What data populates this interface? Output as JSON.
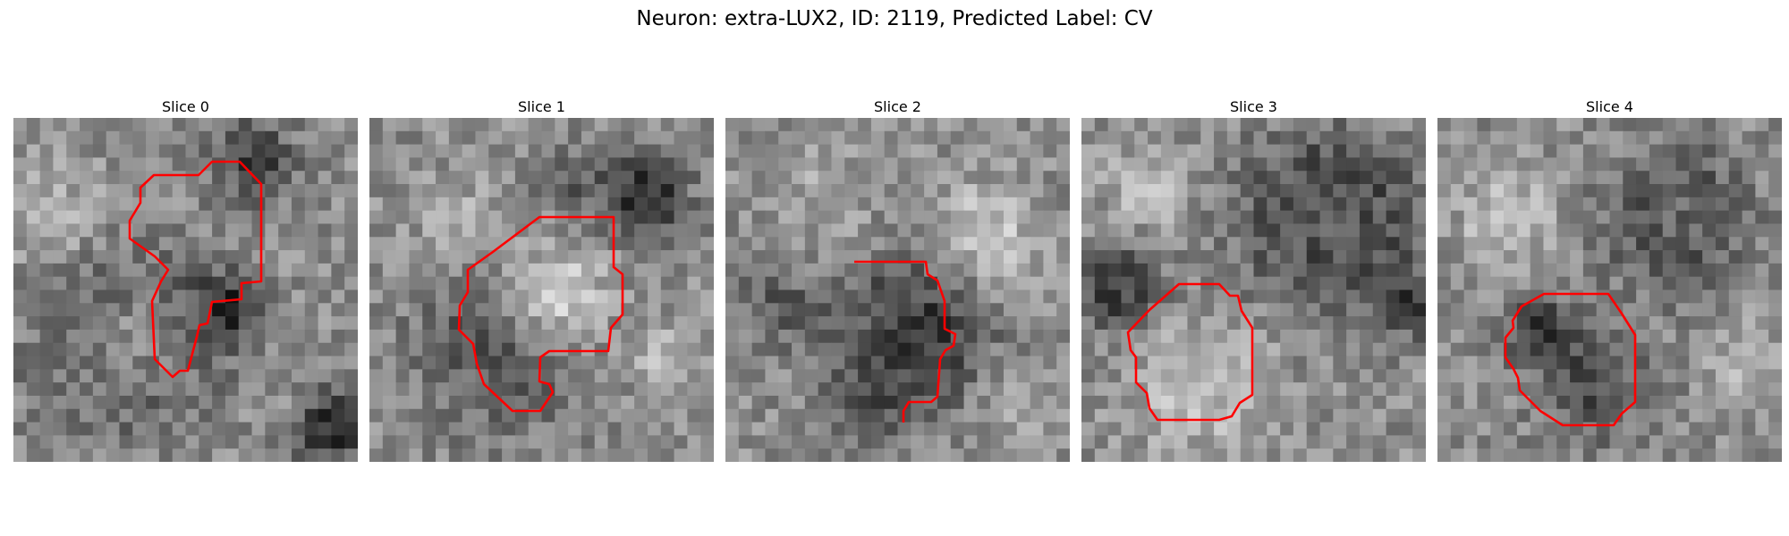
{
  "figure": {
    "title": "Neuron: extra-LUX2, ID: 2119, Predicted Label: CV"
  },
  "colors": {
    "contour": "#ff0000",
    "background": "#ffffff"
  },
  "panels": [
    {
      "title": "Slice 0"
    },
    {
      "title": "Slice 1"
    },
    {
      "title": "Slice 2"
    },
    {
      "title": "Slice 3"
    },
    {
      "title": "Slice 4"
    }
  ]
}
